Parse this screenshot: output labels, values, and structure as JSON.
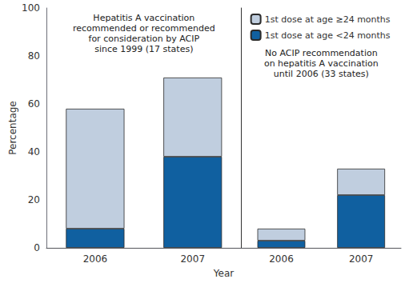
{
  "chart_data": [
    {
      "type": "bar",
      "stacked": true,
      "categories": [
        "2006",
        "2007"
      ],
      "ylabel": "Percentage",
      "xlabel": "Year",
      "ylim": [
        0,
        100
      ],
      "yticks": [
        0,
        20,
        40,
        60,
        80,
        100
      ],
      "grid": false,
      "annotation": "Hepatitis A vaccination\nrecommended or recommended\nfor consideration by ACIP\nsince 1999 (17 states)",
      "series": [
        {
          "name": "1st dose at age <24 months",
          "color": "#1060a0",
          "values": [
            8,
            38
          ]
        },
        {
          "name": "1st dose at age ≥24 months",
          "color": "#c0cedf",
          "values": [
            50,
            33
          ]
        }
      ]
    },
    {
      "type": "bar",
      "stacked": true,
      "categories": [
        "2006",
        "2007"
      ],
      "ylim": [
        0,
        100
      ],
      "yticks": [
        0,
        20,
        40,
        60,
        80,
        100
      ],
      "grid": false,
      "tick_labels": "x",
      "legend": "upper left",
      "annotation": "No ACIP recommendation\non hepatitis A vaccination\nuntil 2006 (33 states)",
      "series": [
        {
          "name": "1st dose at age <24 months",
          "color": "#1060a0",
          "values": [
            3,
            22
          ]
        },
        {
          "name": "1st dose at age ≥24 months",
          "color": "#c0cedf",
          "values": [
            5,
            11
          ]
        }
      ]
    }
  ]
}
